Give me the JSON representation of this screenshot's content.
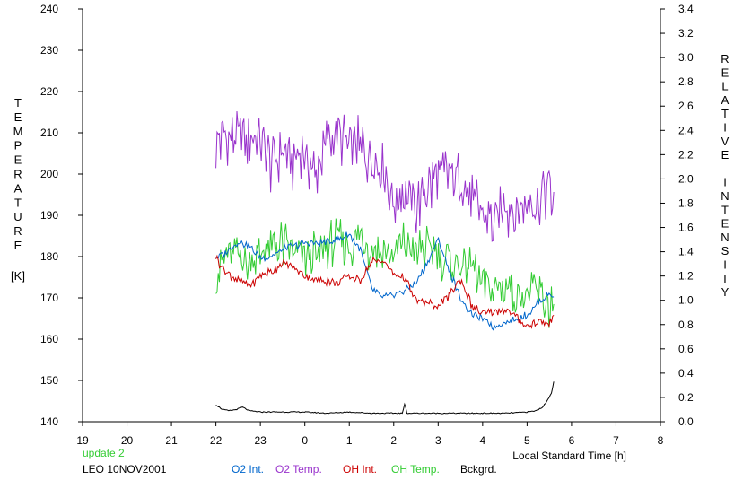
{
  "chart_data": {
    "type": "line",
    "left_axis_label": "TEMPERATURE",
    "left_axis_unit": "[K]",
    "right_axis_label": "RELATIVE INTENSITY",
    "xlabel": "Local Standard Time [h]",
    "xlim": [
      19,
      32
    ],
    "x_tick_labels": [
      "19",
      "20",
      "21",
      "22",
      "23",
      "0",
      "1",
      "2",
      "3",
      "4",
      "5",
      "6",
      "7",
      "8"
    ],
    "ylim_left": [
      140,
      240
    ],
    "y_left_ticks": [
      "140",
      "150",
      "160",
      "170",
      "180",
      "190",
      "200",
      "210",
      "220",
      "230",
      "240"
    ],
    "ylim_right": [
      0.0,
      3.4
    ],
    "y_right_ticks": [
      "0.0",
      "0.2",
      "0.4",
      "0.6",
      "0.8",
      "1.0",
      "1.2",
      "1.4",
      "1.6",
      "1.8",
      "2.0",
      "2.2",
      "2.4",
      "2.6",
      "2.8",
      "3.0",
      "3.2",
      "3.4"
    ],
    "grid": false,
    "legend_position": "bottom",
    "status_text": "update 2",
    "station_text": "LEO 10NOV2001",
    "series": [
      {
        "name": "O2 Temp.",
        "axis": "left",
        "color": "#9933cc",
        "x": [
          22.0,
          22.25,
          22.5,
          22.75,
          23.0,
          23.25,
          23.5,
          23.75,
          24.0,
          24.25,
          24.5,
          24.75,
          25.0,
          25.25,
          25.5,
          25.75,
          26.0,
          26.25,
          26.5,
          26.75,
          27.0,
          27.25,
          27.5,
          27.75,
          28.0,
          28.25,
          28.5,
          28.75,
          29.0,
          29.25,
          29.5,
          29.6
        ],
        "y": [
          207,
          210,
          208,
          209,
          207,
          202,
          206,
          203,
          205,
          200,
          208,
          210,
          206,
          207,
          204,
          203,
          193,
          196,
          191,
          196,
          199,
          200,
          198,
          194,
          190,
          188,
          193,
          190,
          194,
          193,
          197,
          192
        ]
      },
      {
        "name": "OH Temp.",
        "axis": "left",
        "color": "#33cc33",
        "x": [
          22.0,
          22.25,
          22.5,
          22.75,
          23.0,
          23.25,
          23.5,
          23.75,
          24.0,
          24.25,
          24.5,
          24.75,
          25.0,
          25.25,
          25.5,
          25.75,
          26.0,
          26.25,
          26.5,
          26.75,
          27.0,
          27.25,
          27.5,
          27.75,
          28.0,
          28.25,
          28.5,
          28.75,
          29.0,
          29.25,
          29.5,
          29.6
        ],
        "y": [
          176,
          180,
          181,
          179,
          180,
          182,
          183,
          181,
          180,
          180,
          182,
          184,
          183,
          184,
          182,
          181,
          180,
          183,
          181,
          182,
          181,
          179,
          178,
          177,
          174,
          172,
          173,
          171,
          170,
          172,
          168,
          168
        ]
      },
      {
        "name": "O2 Int.",
        "axis": "right",
        "color": "#0066cc",
        "x": [
          22.0,
          22.25,
          22.5,
          22.75,
          23.0,
          23.25,
          23.5,
          23.75,
          24.0,
          24.25,
          24.5,
          24.75,
          25.0,
          25.25,
          25.5,
          25.75,
          26.0,
          26.25,
          26.5,
          26.75,
          27.0,
          27.25,
          27.5,
          27.75,
          28.0,
          28.25,
          28.5,
          28.75,
          29.0,
          29.25,
          29.5,
          29.6
        ],
        "y": [
          1.35,
          1.4,
          1.48,
          1.45,
          1.35,
          1.36,
          1.42,
          1.45,
          1.47,
          1.47,
          1.48,
          1.5,
          1.54,
          1.42,
          1.1,
          1.02,
          1.05,
          1.08,
          1.14,
          1.3,
          1.5,
          1.24,
          1.02,
          0.88,
          0.85,
          0.78,
          0.82,
          0.84,
          0.88,
          0.98,
          1.05,
          1.04
        ]
      },
      {
        "name": "OH Int.",
        "axis": "right",
        "color": "#cc0000",
        "x": [
          22.0,
          22.25,
          22.5,
          22.75,
          23.0,
          23.25,
          23.5,
          23.75,
          24.0,
          24.25,
          24.5,
          24.75,
          25.0,
          25.25,
          25.5,
          25.75,
          26.0,
          26.25,
          26.5,
          26.75,
          27.0,
          27.25,
          27.5,
          27.75,
          28.0,
          28.25,
          28.5,
          28.75,
          29.0,
          29.25,
          29.5,
          29.6
        ],
        "y": [
          1.35,
          1.22,
          1.16,
          1.12,
          1.2,
          1.24,
          1.3,
          1.27,
          1.2,
          1.17,
          1.16,
          1.15,
          1.2,
          1.17,
          1.32,
          1.33,
          1.22,
          1.18,
          1.0,
          0.98,
          0.95,
          1.04,
          1.18,
          0.96,
          0.88,
          0.9,
          0.92,
          0.86,
          0.78,
          0.82,
          0.8,
          0.9
        ]
      },
      {
        "name": "Bckgrd.",
        "axis": "right",
        "color": "#000000",
        "x": [
          22.0,
          22.15,
          22.3,
          22.45,
          22.6,
          22.75,
          23.0,
          23.5,
          24.0,
          24.5,
          25.0,
          25.5,
          26.0,
          26.2,
          26.25,
          26.3,
          26.5,
          27.0,
          27.5,
          28.0,
          28.5,
          29.0,
          29.2,
          29.35,
          29.45,
          29.55,
          29.6
        ],
        "y": [
          0.14,
          0.1,
          0.09,
          0.1,
          0.12,
          0.09,
          0.08,
          0.08,
          0.08,
          0.07,
          0.08,
          0.07,
          0.07,
          0.07,
          0.15,
          0.07,
          0.07,
          0.07,
          0.07,
          0.07,
          0.07,
          0.08,
          0.09,
          0.12,
          0.17,
          0.24,
          0.33
        ]
      }
    ]
  }
}
